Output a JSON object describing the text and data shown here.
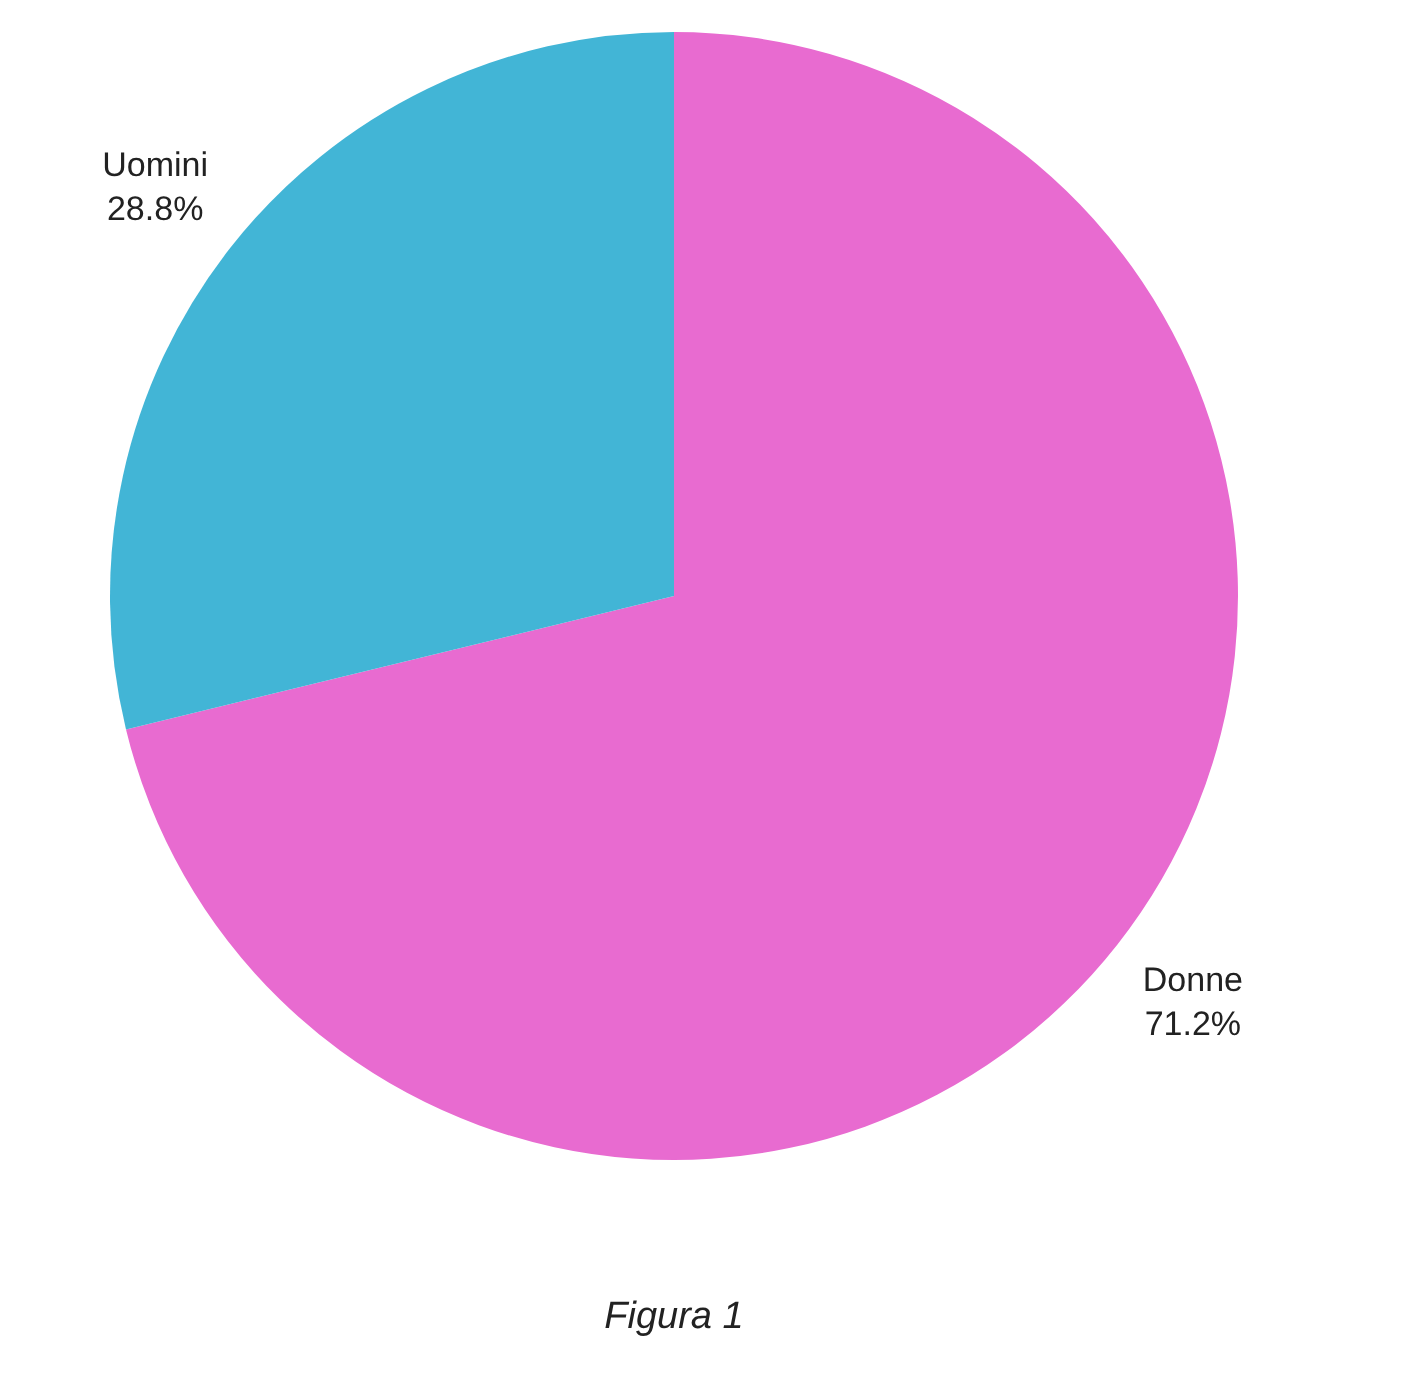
{
  "chart_data": {
    "type": "pie",
    "categories": [
      "Donne",
      "Uomini"
    ],
    "values": [
      71.2,
      28.8
    ],
    "colors": [
      "#e86bd0",
      "#42b5d6"
    ],
    "value_labels": [
      "71.2%",
      "28.8%"
    ],
    "legend": false,
    "annotations": [
      "Figura 1"
    ]
  }
}
